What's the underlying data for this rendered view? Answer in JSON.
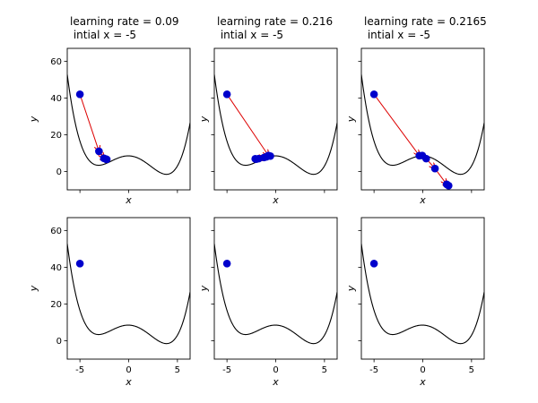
{
  "figure": {
    "chart_type": "line",
    "x_ticks": [
      -5,
      0,
      5
    ],
    "y_ticks": [
      0,
      20,
      40,
      60
    ],
    "xlim": [
      -6.3,
      6.3
    ],
    "ylim": [
      -10,
      67
    ],
    "axes_frame": "box",
    "grid": false,
    "colors": {
      "curve": "#000000",
      "points": "#0000cc",
      "arrows": "#dd0000"
    }
  },
  "chart_data": [
    {
      "type": "line",
      "title": "learning rate = 0.09\n intial x = -5",
      "xlabel": "x",
      "ylabel": "y",
      "show_x_ticklabels": false,
      "show_y_ticklabels": true,
      "points": [
        {
          "x": -5.0,
          "y": 42
        },
        {
          "x": -3.05,
          "y": 11
        },
        {
          "x": -2.55,
          "y": 7.2
        },
        {
          "x": -2.35,
          "y": 6.8
        },
        {
          "x": -2.25,
          "y": 6.6
        }
      ]
    },
    {
      "type": "line",
      "title": "learning rate = 0.216\n intial x = -5",
      "xlabel": "x",
      "ylabel": "y",
      "show_x_ticklabels": false,
      "show_y_ticklabels": false,
      "points": [
        {
          "x": -5.0,
          "y": 42
        },
        {
          "x": -0.75,
          "y": 8.7
        },
        {
          "x": -2.1,
          "y": 6.9
        },
        {
          "x": -1.2,
          "y": 7.6
        },
        {
          "x": -1.75,
          "y": 7.0
        },
        {
          "x": -0.55,
          "y": 8.4
        },
        {
          "x": -2.0,
          "y": 6.7
        },
        {
          "x": -0.95,
          "y": 8.0
        }
      ]
    },
    {
      "type": "line",
      "title": "learning rate = 0.2165\n intial x = -5",
      "xlabel": "x",
      "ylabel": "y",
      "show_x_ticklabels": false,
      "show_y_ticklabels": false,
      "points": [
        {
          "x": -5.0,
          "y": 42
        },
        {
          "x": -0.35,
          "y": 8.6
        },
        {
          "x": -0.05,
          "y": 8.7
        },
        {
          "x": 0.35,
          "y": 7.0
        },
        {
          "x": 1.25,
          "y": 1.6
        },
        {
          "x": 2.45,
          "y": -7.0
        },
        {
          "x": 2.65,
          "y": -7.7
        }
      ]
    },
    {
      "type": "line",
      "title": "",
      "xlabel": "x",
      "ylabel": "y",
      "show_x_ticklabels": true,
      "show_y_ticklabels": true,
      "points": [
        {
          "x": -5.0,
          "y": 42
        }
      ]
    },
    {
      "type": "line",
      "title": "",
      "xlabel": "x",
      "ylabel": "y",
      "show_x_ticklabels": true,
      "show_y_ticklabels": false,
      "points": [
        {
          "x": -5.0,
          "y": 42
        }
      ]
    },
    {
      "type": "line",
      "title": "",
      "xlabel": "x",
      "ylabel": "y",
      "show_x_ticklabels": true,
      "show_y_ticklabels": false,
      "points": [
        {
          "x": -5.0,
          "y": 42
        }
      ]
    }
  ]
}
